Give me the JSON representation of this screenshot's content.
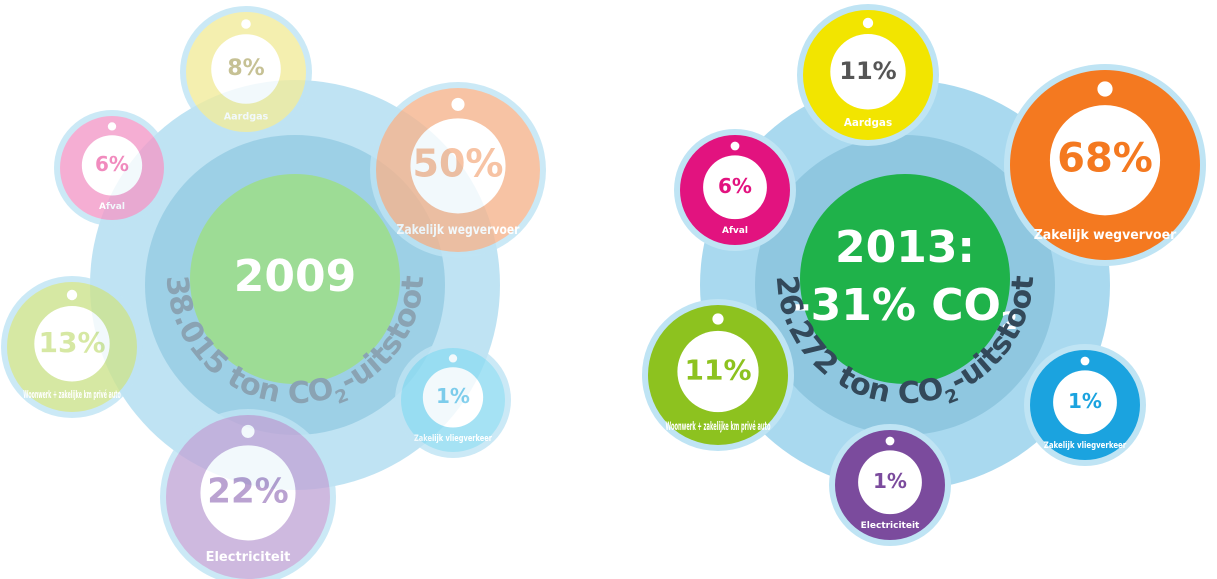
{
  "panels": [
    {
      "center": {
        "lines": [
          {
            "text": "2009"
          }
        ]
      },
      "total": {
        "text": "38.015 ton CO",
        "sub": "2",
        "suffix": "-uitstoot"
      },
      "items": [
        {
          "label": "Aardgas",
          "value": "8%"
        },
        {
          "label": "Afval",
          "value": "6%"
        },
        {
          "label": "Zakelijk wegvervoer",
          "value": "50%"
        },
        {
          "label": "Woonwerk + zakelijke km privé auto",
          "value": "13%"
        },
        {
          "label": "Zakelijk vliegverkeer",
          "value": "1%"
        },
        {
          "label": "Electriciteit",
          "value": "22%"
        }
      ]
    },
    {
      "center": {
        "lines": [
          {
            "text": "2013:"
          },
          {
            "text": "-31% CO",
            "sub": "2"
          }
        ]
      },
      "total": {
        "text": "26.272 ton CO",
        "sub": "2",
        "suffix": "-uitstoot"
      },
      "items": [
        {
          "label": "Aardgas",
          "value": "11%"
        },
        {
          "label": "Afval",
          "value": "6%"
        },
        {
          "label": "Zakelijk wegvervoer",
          "value": "68%"
        },
        {
          "label": "Woonwerk + zakelijke km privé auto",
          "value": "11%"
        },
        {
          "label": "Zakelijk vliegverkeer",
          "value": "1%"
        },
        {
          "label": "Electriciteit",
          "value": "1%"
        }
      ]
    }
  ]
}
